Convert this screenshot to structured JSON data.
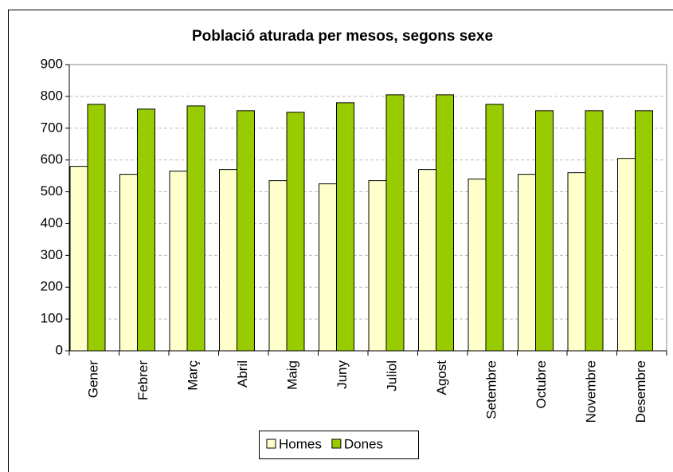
{
  "chart_data": {
    "type": "bar",
    "title": "Població aturada per mesos, segons sexe",
    "categories": [
      "Gener",
      "Febrer",
      "Març",
      "Abril",
      "Maig",
      "Juny",
      "Juliol",
      "Agost",
      "Setembre",
      "Octubre",
      "Novembre",
      "Desembre"
    ],
    "series": [
      {
        "name": "Homes",
        "color": "#ffffcc",
        "values": [
          580,
          555,
          565,
          570,
          535,
          525,
          535,
          570,
          540,
          555,
          560,
          605
        ]
      },
      {
        "name": "Dones",
        "color": "#99cc00",
        "values": [
          775,
          760,
          770,
          755,
          750,
          780,
          805,
          805,
          775,
          755,
          755,
          755
        ]
      }
    ],
    "ylim": [
      0,
      900
    ],
    "yticks": [
      0,
      100,
      200,
      300,
      400,
      500,
      600,
      700,
      800,
      900
    ],
    "grid": true,
    "legend": "bottom"
  }
}
